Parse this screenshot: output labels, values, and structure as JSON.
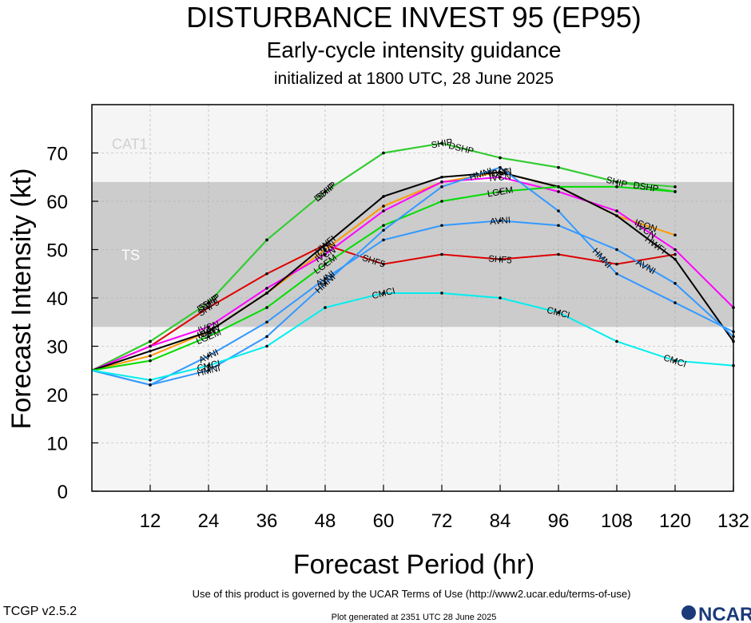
{
  "header": {
    "title": "DISTURBANCE INVEST 95 (EP95)",
    "subtitle": "Early-cycle intensity guidance",
    "initialized": "initialized at 1800 UTC, 28 June 2025"
  },
  "footer": {
    "terms": "Use of this product is governed by the UCAR Terms of Use (http://www2.ucar.edu/terms-of-use)",
    "version": "TCGP v2.5.2",
    "generated": "Plot generated at 2351 UTC   28 June 2025",
    "logo_text": "NCAR"
  },
  "chart_data": {
    "type": "line",
    "xlabel": "Forecast Period (hr)",
    "ylabel": "Forecast Intensity (kt)",
    "xlim": [
      0,
      132
    ],
    "ylim": [
      0,
      80
    ],
    "xticks": [
      12,
      24,
      36,
      48,
      60,
      72,
      84,
      96,
      108,
      120,
      132
    ],
    "yticks": [
      0,
      10,
      20,
      30,
      40,
      50,
      60,
      70
    ],
    "bands": [
      {
        "label": "TS",
        "from": 34,
        "to": 64,
        "color": "#cccccc"
      },
      {
        "label": "CAT1",
        "from": 64,
        "to": 80,
        "color": "#f5f5f5"
      }
    ],
    "below_band_color": "#f5f5f5",
    "series": [
      {
        "name": "SHIP",
        "color": "#33cc33",
        "x": [
          0,
          12,
          24,
          36,
          48,
          60,
          72,
          84,
          96,
          108,
          120
        ],
        "y": [
          25,
          31,
          39,
          52,
          62,
          70,
          72,
          69,
          67,
          64,
          63
        ],
        "label_x": [
          24,
          48,
          72,
          108
        ]
      },
      {
        "name": "DSHP",
        "color": "#33cc33",
        "x": [
          0,
          12,
          24,
          36,
          48,
          60,
          72,
          84,
          96,
          108,
          120
        ],
        "y": [
          25,
          31,
          39,
          52,
          62,
          70,
          72,
          69,
          67,
          64,
          62
        ],
        "label_x": [
          24,
          48,
          76,
          114
        ]
      },
      {
        "name": "SHF5",
        "color": "#dd0000",
        "x": [
          0,
          12,
          24,
          36,
          48,
          60,
          72,
          84,
          96,
          108,
          120
        ],
        "y": [
          25,
          30,
          38,
          45,
          51,
          47,
          49,
          48,
          49,
          47,
          49
        ],
        "label_x": [
          24,
          58,
          84
        ]
      },
      {
        "name": "ICON",
        "color": "#ff9900",
        "x": [
          0,
          12,
          24,
          36,
          48,
          60,
          72,
          84,
          96,
          108,
          120
        ],
        "y": [
          25,
          28,
          33,
          41,
          50,
          59,
          64,
          66,
          63,
          57,
          53
        ],
        "label_x": [
          24,
          48,
          84,
          114
        ]
      },
      {
        "name": "IVCN",
        "color": "#ff00ff",
        "x": [
          0,
          12,
          24,
          36,
          48,
          60,
          72,
          84,
          96,
          108,
          120,
          132
        ],
        "y": [
          25,
          30,
          34,
          42,
          49,
          58,
          64,
          65,
          62,
          58,
          50,
          38
        ],
        "label_x": [
          24,
          48,
          84,
          114
        ]
      },
      {
        "name": "HWFI",
        "color": "#000000",
        "x": [
          0,
          12,
          24,
          36,
          48,
          60,
          72,
          84,
          96,
          108,
          120,
          132
        ],
        "y": [
          25,
          29,
          33,
          41,
          51,
          61,
          65,
          66,
          63,
          57,
          48,
          31
        ],
        "label_x": [
          24,
          48,
          84,
          116
        ]
      },
      {
        "name": "LGEM",
        "color": "#00dd00",
        "x": [
          0,
          12,
          24,
          36,
          48,
          60,
          72,
          84,
          96,
          108,
          120
        ],
        "y": [
          25,
          27,
          32,
          38,
          47,
          55,
          60,
          62,
          63,
          63,
          62
        ],
        "label_x": [
          24,
          48,
          84
        ]
      },
      {
        "name": "AVNI",
        "color": "#3399ff",
        "x": [
          0,
          12,
          24,
          36,
          48,
          60,
          72,
          84,
          96,
          108,
          120,
          132
        ],
        "y": [
          25,
          22,
          28,
          35,
          44,
          52,
          55,
          56,
          55,
          50,
          43,
          32
        ],
        "label_x": [
          24,
          48,
          84,
          114
        ]
      },
      {
        "name": "HMNI",
        "color": "#3399ff",
        "x": [
          0,
          12,
          24,
          36,
          48,
          60,
          72,
          84,
          96,
          108,
          120,
          132
        ],
        "y": [
          25,
          22,
          25,
          32,
          43,
          54,
          63,
          67,
          58,
          45,
          39,
          33
        ],
        "label_x": [
          24,
          48,
          80,
          105
        ]
      },
      {
        "name": "CMCI",
        "color": "#00eeee",
        "x": [
          0,
          12,
          24,
          36,
          48,
          60,
          72,
          84,
          96,
          108,
          120,
          132
        ],
        "y": [
          25,
          23,
          26,
          30,
          38,
          41,
          41,
          40,
          37,
          31,
          27,
          26
        ],
        "label_x": [
          24,
          60,
          96,
          120
        ]
      }
    ]
  }
}
